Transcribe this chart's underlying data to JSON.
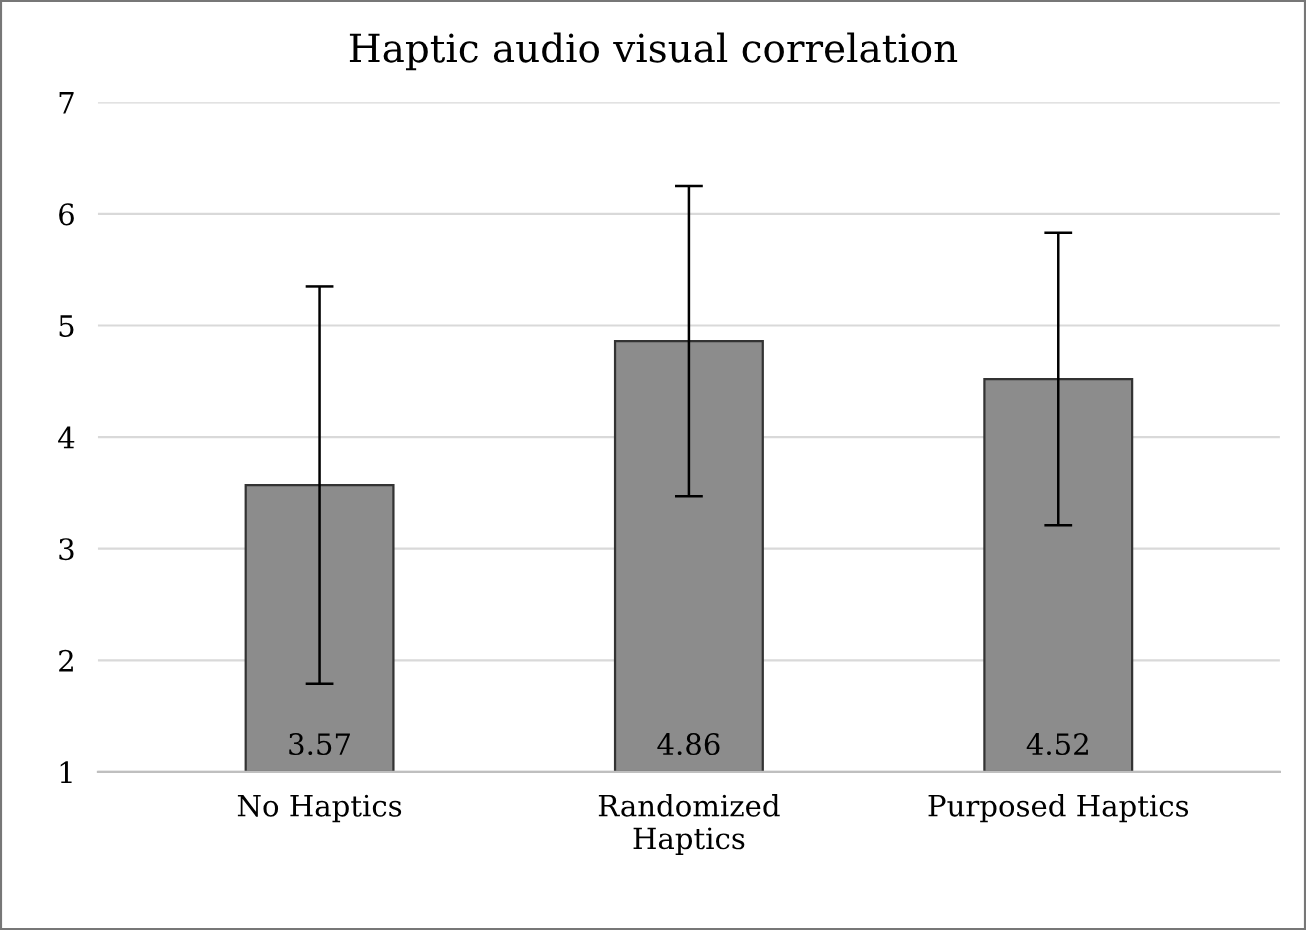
{
  "chart_data": {
    "type": "bar",
    "title": "Haptic audio visual correlation",
    "categories": [
      "No Haptics",
      "Randomized\nHaptics",
      "Purposed Haptics"
    ],
    "values": [
      3.57,
      4.86,
      4.52
    ],
    "errors": [
      1.78,
      1.39,
      1.31
    ],
    "color": "#8c8c8c",
    "data_labels": true,
    "ylim": [
      1,
      7
    ],
    "yticks": [
      1,
      2,
      3,
      4,
      5,
      6,
      7
    ],
    "grid": "y"
  }
}
